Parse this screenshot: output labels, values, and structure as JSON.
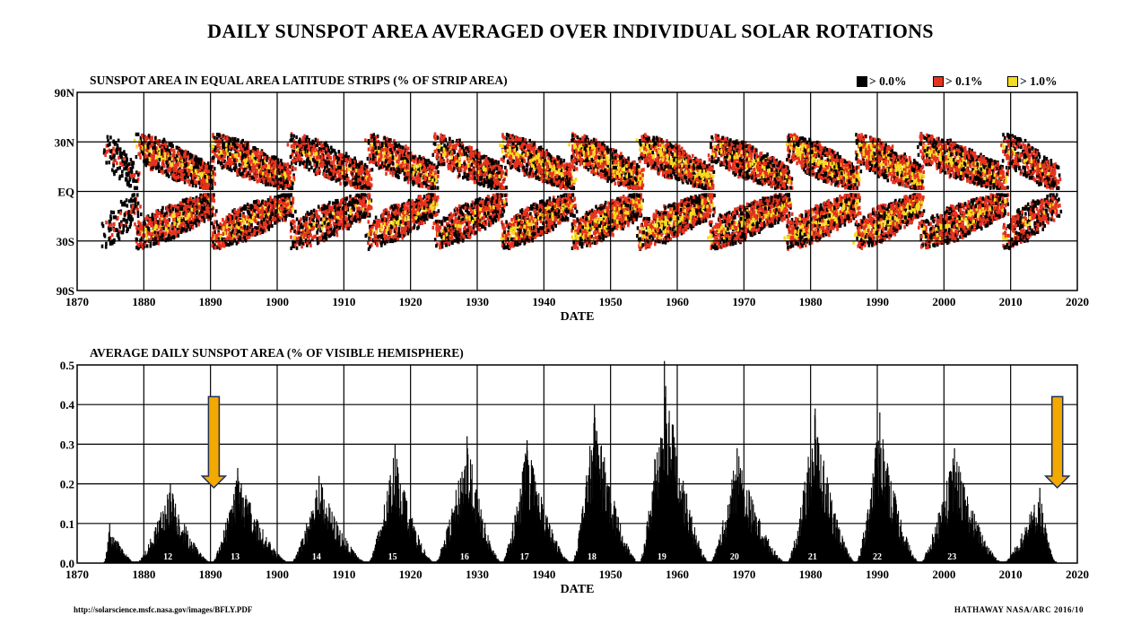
{
  "title": "DAILY SUNSPOT AREA AVERAGED OVER INDIVIDUAL SOLAR ROTATIONS",
  "footer": {
    "url": "http://solarscience.msfc.nasa.gov/images/BFLY.PDF",
    "credit": "HATHAWAY   NASA/ARC   2016/10"
  },
  "colors": {
    "black": "#000000",
    "red": "#e8321e",
    "yellow": "#f5dc1e",
    "arrow": "#f2a900"
  },
  "chart_data": [
    {
      "type": "heatmap",
      "title": "SUNSPOT AREA IN EQUAL AREA LATITUDE STRIPS (% OF STRIP AREA)",
      "xlabel": "DATE",
      "ylabel": "",
      "xlim": [
        1870,
        2020
      ],
      "x_ticks": [
        "1870",
        "1880",
        "1890",
        "1900",
        "1910",
        "1920",
        "1930",
        "1940",
        "1950",
        "1960",
        "1970",
        "1980",
        "1990",
        "2000",
        "2010",
        "2020"
      ],
      "y_ticks": [
        "90N",
        "30N",
        "EQ",
        "30S",
        "90S"
      ],
      "grid": true,
      "legend_position": "top-right",
      "legend": [
        {
          "label": "> 0.0%",
          "color": "#000000"
        },
        {
          "label": "> 0.1%",
          "color": "#e8321e"
        },
        {
          "label": "> 1.0%",
          "color": "#f5dc1e"
        }
      ],
      "cycles": [
        {
          "start": 1874.0,
          "end": 1878.9,
          "strength": 0.35
        },
        {
          "start": 1878.9,
          "end": 1890.2,
          "strength": 0.8
        },
        {
          "start": 1890.2,
          "end": 1902.0,
          "strength": 0.85
        },
        {
          "start": 1902.0,
          "end": 1913.6,
          "strength": 0.7
        },
        {
          "start": 1913.6,
          "end": 1923.6,
          "strength": 0.8
        },
        {
          "start": 1923.6,
          "end": 1933.7,
          "strength": 0.8
        },
        {
          "start": 1933.7,
          "end": 1944.2,
          "strength": 0.95
        },
        {
          "start": 1944.2,
          "end": 1954.3,
          "strength": 1.0
        },
        {
          "start": 1954.3,
          "end": 1964.9,
          "strength": 1.0
        },
        {
          "start": 1964.9,
          "end": 1976.5,
          "strength": 0.9
        },
        {
          "start": 1976.5,
          "end": 1986.8,
          "strength": 1.0
        },
        {
          "start": 1986.8,
          "end": 1996.4,
          "strength": 1.0
        },
        {
          "start": 1996.4,
          "end": 2008.9,
          "strength": 0.9
        },
        {
          "start": 2008.9,
          "end": 2016.8,
          "strength": 0.7
        }
      ]
    },
    {
      "type": "bar",
      "title": "AVERAGE DAILY SUNSPOT AREA (% OF VISIBLE HEMISPHERE)",
      "xlabel": "DATE",
      "ylabel": "",
      "xlim": [
        1870,
        2020
      ],
      "ylim": [
        0.0,
        0.5
      ],
      "x_ticks": [
        "1870",
        "1880",
        "1890",
        "1900",
        "1910",
        "1920",
        "1930",
        "1940",
        "1950",
        "1960",
        "1970",
        "1980",
        "1990",
        "2000",
        "2010",
        "2020"
      ],
      "y_ticks": [
        "0.0",
        "0.1",
        "0.2",
        "0.3",
        "0.4",
        "0.5"
      ],
      "grid": true,
      "cycles": [
        {
          "label": "",
          "start": 1874.0,
          "peak_year": 1874.8,
          "end": 1878.9,
          "peak": 0.1
        },
        {
          "label": "12",
          "start": 1878.9,
          "peak_year": 1883.9,
          "end": 1890.2,
          "peak": 0.2
        },
        {
          "label": "13",
          "start": 1890.2,
          "peak_year": 1894.0,
          "end": 1902.0,
          "peak": 0.24
        },
        {
          "label": "14",
          "start": 1902.0,
          "peak_year": 1906.2,
          "end": 1913.6,
          "peak": 0.22
        },
        {
          "label": "15",
          "start": 1913.6,
          "peak_year": 1917.6,
          "end": 1923.6,
          "peak": 0.3
        },
        {
          "label": "16",
          "start": 1923.6,
          "peak_year": 1928.4,
          "end": 1933.7,
          "peak": 0.32
        },
        {
          "label": "17",
          "start": 1933.7,
          "peak_year": 1937.4,
          "end": 1944.2,
          "peak": 0.31
        },
        {
          "label": "18",
          "start": 1944.2,
          "peak_year": 1947.5,
          "end": 1954.3,
          "peak": 0.4
        },
        {
          "label": "19",
          "start": 1954.3,
          "peak_year": 1958.0,
          "end": 1964.9,
          "peak": 0.51
        },
        {
          "label": "20",
          "start": 1964.9,
          "peak_year": 1968.9,
          "end": 1976.5,
          "peak": 0.29
        },
        {
          "label": "21",
          "start": 1976.5,
          "peak_year": 1980.6,
          "end": 1986.8,
          "peak": 0.39
        },
        {
          "label": "22",
          "start": 1986.8,
          "peak_year": 1990.3,
          "end": 1996.4,
          "peak": 0.38
        },
        {
          "label": "23",
          "start": 1996.4,
          "peak_year": 2001.5,
          "end": 2008.9,
          "peak": 0.29
        },
        {
          "label": "",
          "start": 2008.9,
          "peak_year": 2014.3,
          "end": 2016.8,
          "peak": 0.19
        }
      ],
      "annotations": [
        {
          "type": "arrow-down",
          "year": 1890.5,
          "color": "#f2a900"
        },
        {
          "type": "arrow-down",
          "year": 2017.0,
          "color": "#f2a900"
        }
      ]
    }
  ]
}
